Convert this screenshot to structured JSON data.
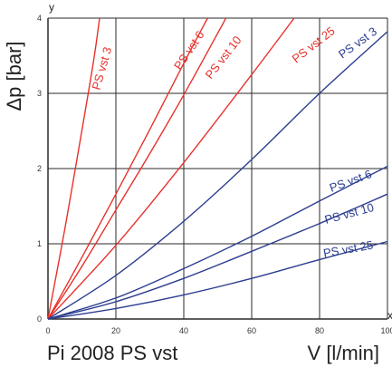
{
  "chart_data": {
    "type": "line",
    "title": "Pi 2008 PS vst",
    "xlabel": "V [l/min]",
    "ylabel": "Δp [bar]",
    "x_axis_letter": "x",
    "y_axis_letter": "y",
    "xlim": [
      0,
      100
    ],
    "ylim": [
      0,
      4
    ],
    "x_ticks": [
      "0",
      "20",
      "40",
      "60",
      "80",
      "100"
    ],
    "y_ticks": [
      "0",
      "1",
      "2",
      "3",
      "4"
    ],
    "grid": true,
    "colors": {
      "red": "#e8312a",
      "blue": "#2c3d8f",
      "grid": "#2a2a2a"
    },
    "series": [
      {
        "name": "PS vst 3",
        "color": "#e8312a",
        "points": [
          [
            0,
            0
          ],
          [
            5,
            1.21
          ],
          [
            10,
            2.51
          ],
          [
            13.5,
            3.45
          ],
          [
            15.2,
            4
          ]
        ]
      },
      {
        "name": "PS vst 6",
        "color": "#e8312a",
        "points": [
          [
            0,
            0
          ],
          [
            10,
            0.82
          ],
          [
            20,
            1.66
          ],
          [
            30,
            2.52
          ],
          [
            40,
            3.4
          ],
          [
            47,
            4
          ]
        ]
      },
      {
        "name": "PS vst 10",
        "color": "#e8312a",
        "points": [
          [
            0,
            0
          ],
          [
            10,
            0.7
          ],
          [
            20,
            1.45
          ],
          [
            30,
            2.2
          ],
          [
            40,
            2.98
          ],
          [
            50,
            3.8
          ],
          [
            52.4,
            4
          ]
        ]
      },
      {
        "name": "PS vst 25",
        "color": "#e8312a",
        "points": [
          [
            0,
            0
          ],
          [
            20,
            0.98
          ],
          [
            40,
            2.08
          ],
          [
            60,
            3.25
          ],
          [
            72.5,
            4
          ]
        ]
      },
      {
        "name": "PS vst 3",
        "color": "#2c3d8f",
        "points": [
          [
            0,
            0
          ],
          [
            20,
            0.58
          ],
          [
            40,
            1.3
          ],
          [
            60,
            2.12
          ],
          [
            80,
            3.0
          ],
          [
            100,
            3.82
          ]
        ]
      },
      {
        "name": "PS vst 6",
        "color": "#2c3d8f",
        "points": [
          [
            0,
            0
          ],
          [
            20,
            0.28
          ],
          [
            40,
            0.67
          ],
          [
            60,
            1.1
          ],
          [
            80,
            1.57
          ],
          [
            100,
            2.03
          ]
        ]
      },
      {
        "name": "PS vst 10",
        "color": "#2c3d8f",
        "points": [
          [
            0,
            0
          ],
          [
            20,
            0.23
          ],
          [
            40,
            0.54
          ],
          [
            60,
            0.9
          ],
          [
            80,
            1.27
          ],
          [
            100,
            1.66
          ]
        ]
      },
      {
        "name": "PS vst 25",
        "color": "#2c3d8f",
        "points": [
          [
            0,
            0
          ],
          [
            20,
            0.14
          ],
          [
            40,
            0.32
          ],
          [
            60,
            0.54
          ],
          [
            80,
            0.79
          ],
          [
            100,
            1.03
          ]
        ]
      }
    ]
  }
}
